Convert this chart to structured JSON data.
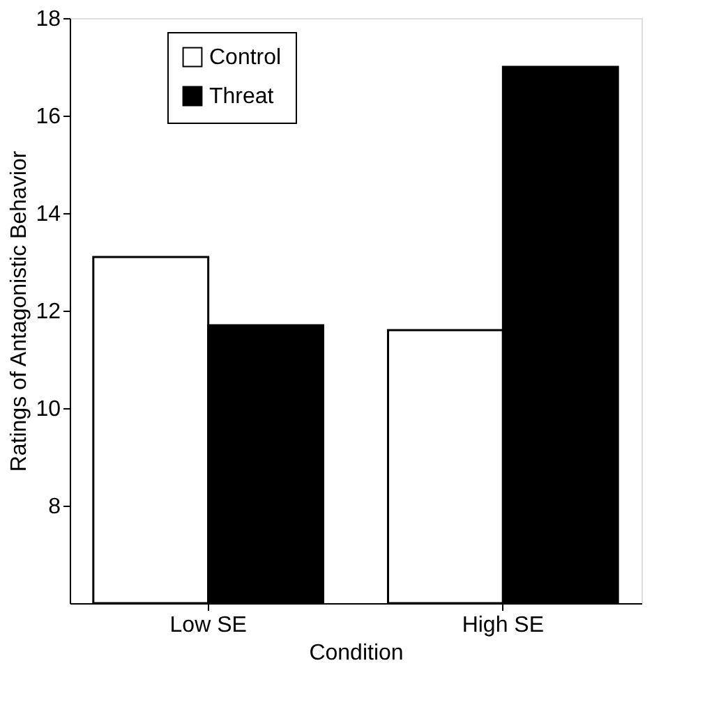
{
  "chart_data": {
    "type": "bar",
    "xlabel": "Condition",
    "ylabel": "Ratings of Antagonistic Behavior",
    "categories": [
      "Low SE",
      "High SE"
    ],
    "series": [
      {
        "name": "Control",
        "color": "#ffffff",
        "values": [
          13.1,
          11.6
        ]
      },
      {
        "name": "Threat",
        "color": "#000000",
        "values": [
          11.7,
          17.0
        ]
      }
    ],
    "ylim": [
      6,
      18
    ],
    "yticks": [
      8,
      10,
      12,
      14,
      16,
      18
    ],
    "grid": false,
    "legend": "top left"
  }
}
